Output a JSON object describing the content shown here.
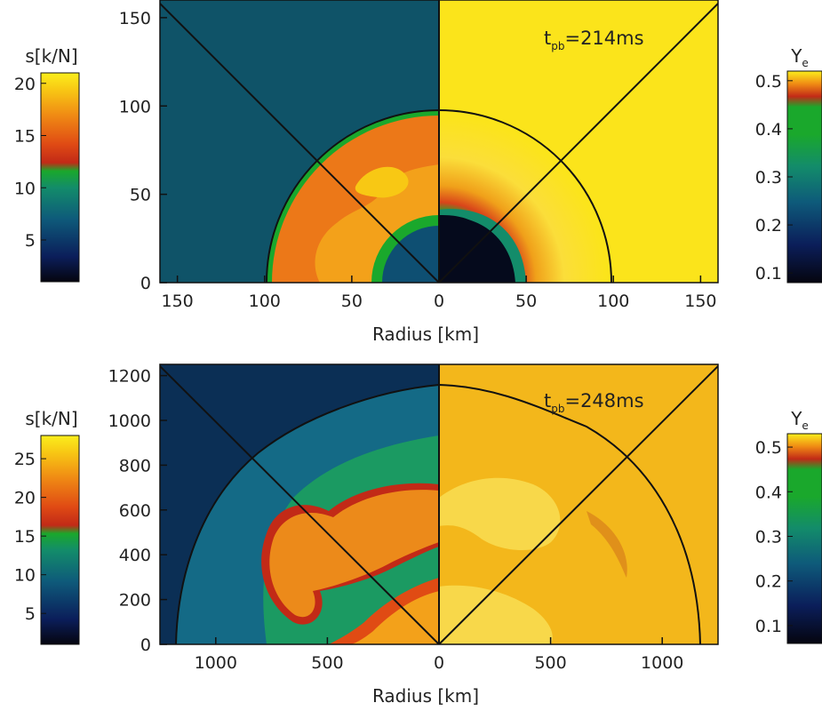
{
  "chart_data": [
    {
      "type": "heatmap",
      "title": "",
      "time_label": {
        "main": "t",
        "sub": "pb",
        "value": "=214ms"
      },
      "xlabel": "Radius [km]",
      "xlim": [
        -160,
        160
      ],
      "ylim": [
        0,
        160
      ],
      "x_ticks": [
        {
          "v": -150,
          "t": "150"
        },
        {
          "v": -100,
          "t": "100"
        },
        {
          "v": -50,
          "t": "50"
        },
        {
          "v": 0,
          "t": "0"
        },
        {
          "v": 50,
          "t": "50"
        },
        {
          "v": 100,
          "t": "100"
        },
        {
          "v": 150,
          "t": "150"
        }
      ],
      "y_ticks": [
        {
          "v": 0,
          "t": "0"
        },
        {
          "v": 50,
          "t": "50"
        },
        {
          "v": 100,
          "t": "100"
        },
        {
          "v": 150,
          "t": "150"
        }
      ],
      "shock_radius_km": 97,
      "left_half_quantity": "s[k/N]",
      "right_half_quantity": "Ye",
      "entropy_colorbar": {
        "label": "s[k/N]",
        "range": [
          1,
          21
        ],
        "ticks": [
          5,
          10,
          15,
          20
        ]
      },
      "ye_colorbar": {
        "label": "Y",
        "label_sub": "e",
        "range": [
          0.08,
          0.52
        ],
        "ticks": [
          0.1,
          0.2,
          0.3,
          0.4,
          0.5
        ]
      }
    },
    {
      "type": "heatmap",
      "title": "",
      "time_label": {
        "main": "t",
        "sub": "pb",
        "value": "=248ms"
      },
      "xlabel": "Radius [km]",
      "xlim": [
        -1250,
        1250
      ],
      "ylim": [
        0,
        1250
      ],
      "x_ticks": [
        {
          "v": -1000,
          "t": "1000"
        },
        {
          "v": -500,
          "t": "500"
        },
        {
          "v": 0,
          "t": "0"
        },
        {
          "v": 500,
          "t": "500"
        },
        {
          "v": 1000,
          "t": "1000"
        }
      ],
      "y_ticks": [
        {
          "v": 0,
          "t": "0"
        },
        {
          "v": 200,
          "t": "200"
        },
        {
          "v": 400,
          "t": "400"
        },
        {
          "v": 600,
          "t": "600"
        },
        {
          "v": 800,
          "t": "800"
        },
        {
          "v": 1000,
          "t": "1000"
        },
        {
          "v": 1200,
          "t": "1200"
        }
      ],
      "shock_radius_km": 1180,
      "left_half_quantity": "s[k/N]",
      "right_half_quantity": "Ye",
      "entropy_colorbar": {
        "label": "s[k/N]",
        "range": [
          1,
          28
        ],
        "ticks": [
          5,
          10,
          15,
          20,
          25
        ]
      },
      "ye_colorbar": {
        "label": "Y",
        "label_sub": "e",
        "range": [
          0.06,
          0.53
        ],
        "ticks": [
          0.1,
          0.2,
          0.3,
          0.4,
          0.5
        ]
      }
    }
  ],
  "colors": {
    "entropy_scale": [
      "#05050f",
      "#0b1e5a",
      "#0e5a7a",
      "#138c6a",
      "#1aa82c",
      "#c22a17",
      "#e04b14",
      "#f08c14",
      "#f8c814",
      "#fbee1c"
    ],
    "ye_scale": [
      "#05050f",
      "#0b1e5a",
      "#0e5a7a",
      "#138c6a",
      "#1aa82c",
      "#1aa82c",
      "#c22a17",
      "#f08c14",
      "#fbee1c"
    ],
    "top_left_bg": "#0f5368",
    "top_right_bg": "#fbe41b",
    "bottom_left_bg": "#0b2f55",
    "bottom_right_bg": "#f3b71b"
  }
}
